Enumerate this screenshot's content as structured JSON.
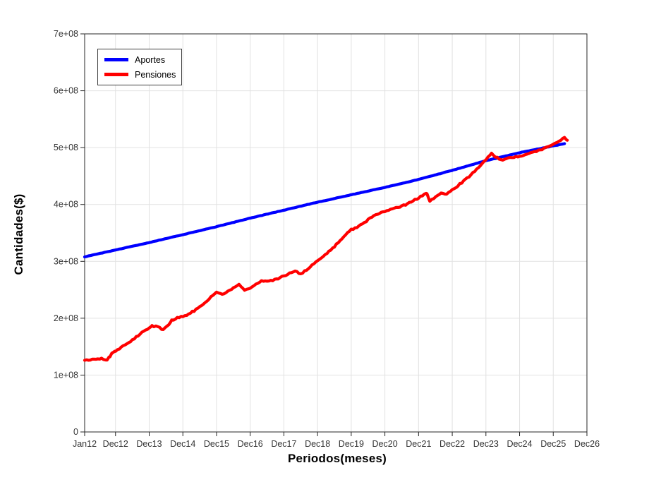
{
  "chart_data": {
    "type": "line",
    "title": "",
    "xlabel": "Periodos(meses)",
    "ylabel": "Cantidades($)",
    "grid": true,
    "background": "#ffffff",
    "axis_color": "#262626",
    "grid_color": "#e2e2e2",
    "tick_label_color": "#333333",
    "ylim": [
      0,
      700000000
    ],
    "y_tick_values": [
      0,
      100000000,
      200000000,
      300000000,
      400000000,
      500000000,
      600000000,
      700000000
    ],
    "y_tick_labels": [
      "0",
      "1e+08",
      "2e+08",
      "3e+08",
      "4e+08",
      "5e+08",
      "6e+08",
      "7e+08"
    ],
    "x_unit": "months since Jan 2012",
    "xlim": [
      0,
      179
    ],
    "x_tick_values": [
      0,
      11,
      23,
      35,
      47,
      59,
      71,
      83,
      95,
      107,
      119,
      131,
      143,
      155,
      167,
      179
    ],
    "x_tick_labels": [
      "Jan12",
      "Dec12",
      "Dec13",
      "Dec14",
      "Dec15",
      "Dec16",
      "Dec17",
      "Dec18",
      "Dec19",
      "Dec20",
      "Dec21",
      "Dec22",
      "Dec23",
      "Dec24",
      "Dec25",
      "Dec26"
    ],
    "legend": {
      "position": "top-left",
      "entries": [
        {
          "label": "Aportes",
          "color": "#0000ff"
        },
        {
          "label": "Pensiones",
          "color": "#ff0000"
        }
      ]
    },
    "series": [
      {
        "name": "Aportes",
        "color": "#0000ff",
        "points": [
          [
            0,
            308000000.0
          ],
          [
            11,
            320000000.0
          ],
          [
            23,
            333000000.0
          ],
          [
            35,
            347000000.0
          ],
          [
            47,
            361000000.0
          ],
          [
            59,
            376000000.0
          ],
          [
            71,
            390000000.0
          ],
          [
            83,
            404000000.0
          ],
          [
            95,
            417000000.0
          ],
          [
            107,
            430000000.0
          ],
          [
            119,
            444000000.0
          ],
          [
            131,
            460000000.0
          ],
          [
            143,
            477000000.0
          ],
          [
            155,
            491000000.0
          ],
          [
            167,
            503000000.0
          ],
          [
            171,
            507000000.0
          ]
        ]
      },
      {
        "name": "Pensiones",
        "color": "#ff0000",
        "points": [
          [
            0,
            126000000.0
          ],
          [
            2,
            127000000.0
          ],
          [
            4,
            128000000.0
          ],
          [
            6,
            129000000.0
          ],
          [
            8,
            127000000.0
          ],
          [
            9,
            133000000.0
          ],
          [
            10,
            140000000.0
          ],
          [
            11,
            142000000.0
          ],
          [
            13,
            149000000.0
          ],
          [
            15,
            155000000.0
          ],
          [
            17,
            162000000.0
          ],
          [
            19,
            169000000.0
          ],
          [
            21,
            177000000.0
          ],
          [
            23,
            183000000.0
          ],
          [
            24,
            186000000.0
          ],
          [
            26,
            185000000.0
          ],
          [
            28,
            180000000.0
          ],
          [
            30,
            188000000.0
          ],
          [
            31,
            196000000.0
          ],
          [
            33,
            201000000.0
          ],
          [
            35,
            203000000.0
          ],
          [
            37,
            207000000.0
          ],
          [
            39,
            213000000.0
          ],
          [
            41,
            220000000.0
          ],
          [
            43,
            228000000.0
          ],
          [
            45,
            238000000.0
          ],
          [
            47,
            246000000.0
          ],
          [
            49,
            241000000.0
          ],
          [
            51,
            247000000.0
          ],
          [
            53,
            253000000.0
          ],
          [
            55,
            259000000.0
          ],
          [
            57,
            250000000.0
          ],
          [
            59,
            253000000.0
          ],
          [
            61,
            259000000.0
          ],
          [
            63,
            265000000.0
          ],
          [
            65,
            266000000.0
          ],
          [
            67,
            267000000.0
          ],
          [
            69,
            270000000.0
          ],
          [
            71,
            274000000.0
          ],
          [
            73,
            279000000.0
          ],
          [
            75,
            283000000.0
          ],
          [
            77,
            277000000.0
          ],
          [
            79,
            285000000.0
          ],
          [
            81,
            293000000.0
          ],
          [
            83,
            301000000.0
          ],
          [
            85,
            309000000.0
          ],
          [
            87,
            317000000.0
          ],
          [
            89,
            326000000.0
          ],
          [
            91,
            336000000.0
          ],
          [
            93,
            346000000.0
          ],
          [
            95,
            356000000.0
          ],
          [
            97,
            359000000.0
          ],
          [
            99,
            366000000.0
          ],
          [
            101,
            373000000.0
          ],
          [
            103,
            380000000.0
          ],
          [
            105,
            385000000.0
          ],
          [
            107,
            388000000.0
          ],
          [
            109,
            391000000.0
          ],
          [
            111,
            394000000.0
          ],
          [
            113,
            397000000.0
          ],
          [
            115,
            401000000.0
          ],
          [
            117,
            406000000.0
          ],
          [
            119,
            412000000.0
          ],
          [
            121,
            418000000.0
          ],
          [
            122,
            420000000.0
          ],
          [
            123,
            406000000.0
          ],
          [
            125,
            413000000.0
          ],
          [
            127,
            420000000.0
          ],
          [
            129,
            419000000.0
          ],
          [
            131,
            426000000.0
          ],
          [
            133,
            433000000.0
          ],
          [
            135,
            441000000.0
          ],
          [
            137,
            449000000.0
          ],
          [
            139,
            459000000.0
          ],
          [
            141,
            469000000.0
          ],
          [
            143,
            479000000.0
          ],
          [
            145,
            489000000.0
          ],
          [
            147,
            482000000.0
          ],
          [
            149,
            478000000.0
          ],
          [
            151,
            482000000.0
          ],
          [
            153,
            483000000.0
          ],
          [
            155,
            485000000.0
          ],
          [
            157,
            488000000.0
          ],
          [
            159,
            491000000.0
          ],
          [
            161,
            494000000.0
          ],
          [
            163,
            497000000.0
          ],
          [
            165,
            501000000.0
          ],
          [
            167,
            505000000.0
          ],
          [
            169,
            511000000.0
          ],
          [
            171,
            517000000.0
          ],
          [
            172,
            513000000.0
          ]
        ]
      }
    ]
  }
}
